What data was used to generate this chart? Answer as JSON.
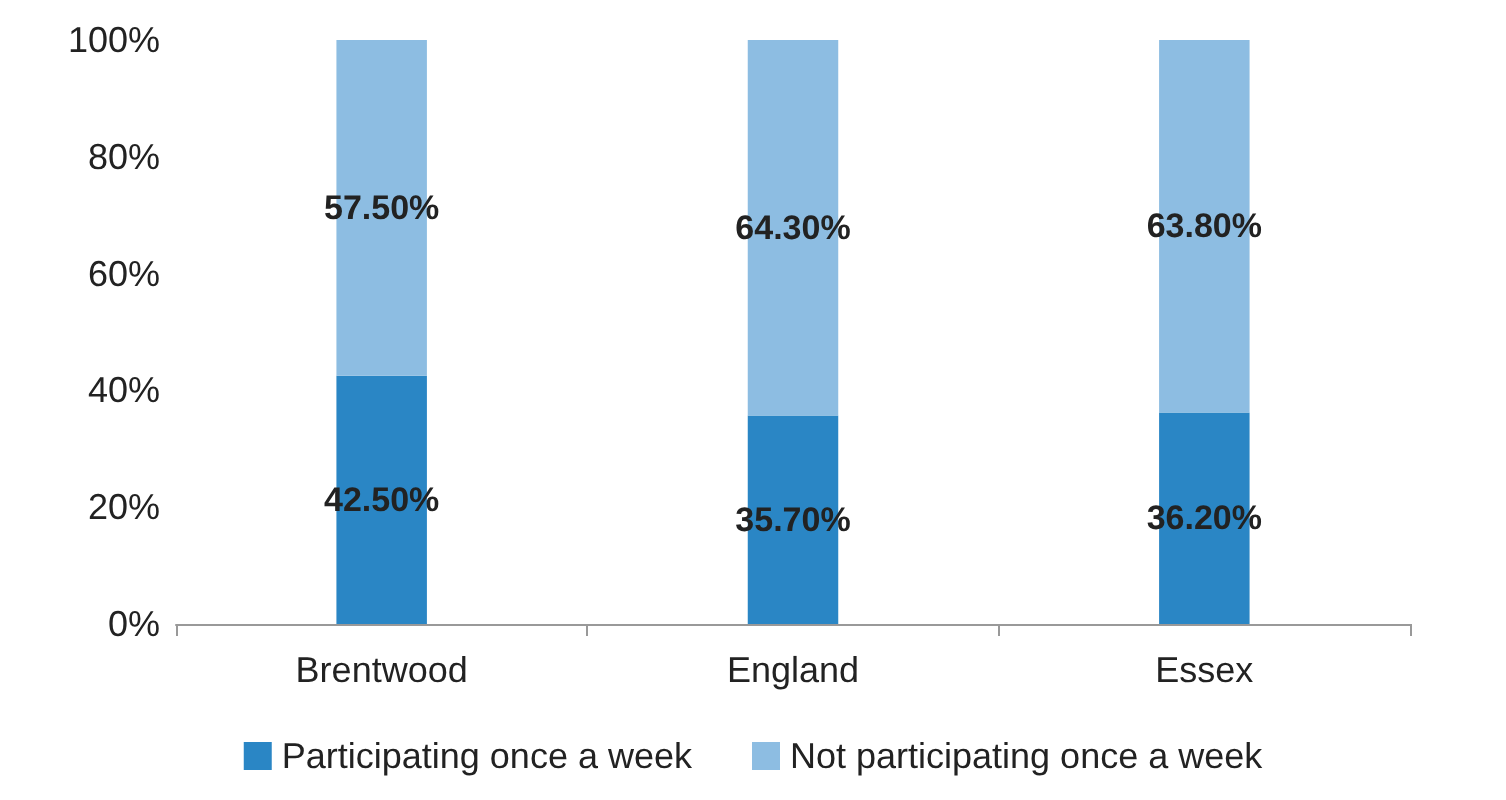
{
  "chart_data": {
    "type": "bar",
    "stacked": true,
    "categories": [
      "Brentwood",
      "England",
      "Essex"
    ],
    "series": [
      {
        "name": "Participating once a week",
        "color": "#2a86c5",
        "values": [
          42.5,
          35.7,
          36.2
        ],
        "value_labels": [
          "42.50%",
          "35.70%",
          "36.20%"
        ]
      },
      {
        "name": "Not participating once a week",
        "color": "#8dbde2",
        "values": [
          57.5,
          64.3,
          63.8
        ],
        "value_labels": [
          "57.50%",
          "64.30%",
          "63.80%"
        ]
      }
    ],
    "ylim": [
      0,
      100
    ],
    "yticks": [
      {
        "value": 0,
        "label": "0%"
      },
      {
        "value": 20,
        "label": "20%"
      },
      {
        "value": 40,
        "label": "40%"
      },
      {
        "value": 60,
        "label": "60%"
      },
      {
        "value": 80,
        "label": "80%"
      },
      {
        "value": 100,
        "label": "100%"
      }
    ],
    "grid": false,
    "legend": "bottom"
  }
}
